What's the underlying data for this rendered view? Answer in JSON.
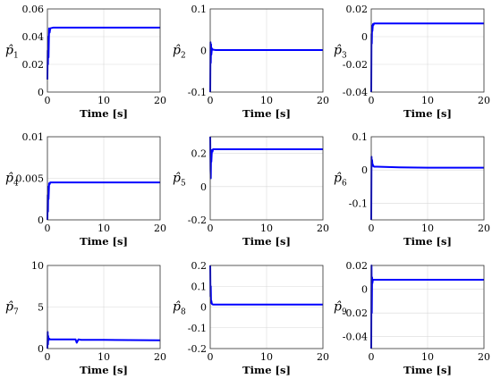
{
  "chart_data": [
    {
      "type": "line",
      "ylabel": "p̂",
      "ylabel_sub": "1",
      "xlabel": "Time [s]",
      "xlim": [
        0,
        20
      ],
      "xticks": [
        0,
        10,
        20
      ],
      "ylim": [
        0,
        0.06
      ],
      "yticks": [
        "0",
        "0.02",
        "0.04",
        "0.06"
      ],
      "grid": true,
      "series": [
        {
          "x": [
            0,
            0.05,
            0.1,
            0.15,
            0.2,
            0.3,
            0.4,
            0.5,
            1,
            5,
            10,
            20
          ],
          "y": [
            0.009,
            0.03,
            0.02,
            0.04,
            0.025,
            0.046,
            0.043,
            0.046,
            0.0465,
            0.0465,
            0.0465,
            0.0465
          ]
        }
      ]
    },
    {
      "type": "line",
      "ylabel": "p̂",
      "ylabel_sub": "2",
      "xlabel": "Time [s]",
      "xlim": [
        0,
        20
      ],
      "xticks": [
        0,
        10,
        20
      ],
      "ylim": [
        -0.1,
        0.1
      ],
      "yticks": [
        "-0.1",
        "0",
        "0.1"
      ],
      "grid": true,
      "series": [
        {
          "x": [
            0,
            0.05,
            0.1,
            0.15,
            0.2,
            0.3,
            0.4,
            0.5,
            1,
            5,
            10,
            20
          ],
          "y": [
            -0.1,
            0.02,
            -0.03,
            0.015,
            -0.01,
            0.005,
            0.003,
            0.002,
            0.001,
            0.001,
            0.001,
            0.001
          ]
        }
      ]
    },
    {
      "type": "line",
      "ylabel": "p̂",
      "ylabel_sub": "3",
      "xlabel": "Time [s]",
      "xlim": [
        0,
        20
      ],
      "xticks": [
        0,
        10,
        20
      ],
      "ylim": [
        -0.04,
        0.02
      ],
      "yticks": [
        "-0.04",
        "-0.02",
        "0",
        "0.02"
      ],
      "grid": true,
      "series": [
        {
          "x": [
            0,
            0.05,
            0.1,
            0.15,
            0.2,
            0.3,
            0.4,
            0.5,
            1,
            5,
            10,
            20
          ],
          "y": [
            -0.04,
            0.002,
            -0.005,
            0.008,
            0.004,
            0.009,
            0.0085,
            0.0095,
            0.0095,
            0.0095,
            0.0095,
            0.0095
          ]
        }
      ]
    },
    {
      "type": "line",
      "ylabel": "p̂",
      "ylabel_sub": "4",
      "xlabel": "Time [s]",
      "xlim": [
        0,
        20
      ],
      "xticks": [
        0,
        10,
        20
      ],
      "ylim": [
        0,
        0.01
      ],
      "yticks": [
        "0",
        "0.005",
        "0.01"
      ],
      "grid": true,
      "series": [
        {
          "x": [
            0,
            0.05,
            0.1,
            0.15,
            0.2,
            0.3,
            0.4,
            0.5,
            1,
            5,
            10,
            20
          ],
          "y": [
            0,
            0.003,
            0.001,
            0.004,
            0.0025,
            0.0044,
            0.0043,
            0.0045,
            0.0045,
            0.0045,
            0.0045,
            0.0045
          ]
        }
      ]
    },
    {
      "type": "line",
      "ylabel": "p̂",
      "ylabel_sub": "5",
      "xlabel": "Time [s]",
      "xlim": [
        0,
        20
      ],
      "xticks": [
        0,
        10,
        20
      ],
      "ylim": [
        -0.2,
        0.3
      ],
      "yticks": [
        "-0.2",
        "0",
        "0.2"
      ],
      "grid": true,
      "series": [
        {
          "x": [
            0,
            0.05,
            0.1,
            0.15,
            0.2,
            0.3,
            0.4,
            0.5,
            1,
            5,
            10,
            20
          ],
          "y": [
            0.3,
            0.1,
            0.05,
            0.2,
            0.15,
            0.22,
            0.21,
            0.225,
            0.225,
            0.225,
            0.225,
            0.225
          ]
        }
      ]
    },
    {
      "type": "line",
      "ylabel": "p̂",
      "ylabel_sub": "6",
      "xlabel": "Time [s]",
      "xlim": [
        0,
        20
      ],
      "xticks": [
        0,
        10,
        20
      ],
      "ylim": [
        -0.15,
        0.1
      ],
      "yticks": [
        "-0.1",
        "0",
        "0.1"
      ],
      "grid": true,
      "series": [
        {
          "x": [
            0,
            0.05,
            0.1,
            0.15,
            0.2,
            0.3,
            0.4,
            0.5,
            1,
            5,
            10,
            20
          ],
          "y": [
            -0.15,
            0.04,
            0.01,
            0.03,
            0.02,
            0.015,
            0.012,
            0.01,
            0.01,
            0.008,
            0.007,
            0.007
          ]
        }
      ]
    },
    {
      "type": "line",
      "ylabel": "p̂",
      "ylabel_sub": "7",
      "xlabel": "Time [s]",
      "xlim": [
        0,
        20
      ],
      "xticks": [
        0,
        10,
        20
      ],
      "ylim": [
        0,
        10
      ],
      "yticks": [
        "0",
        "5",
        "10"
      ],
      "grid": true,
      "series": [
        {
          "x": [
            0,
            0.05,
            0.1,
            0.15,
            0.2,
            0.3,
            0.5,
            1,
            5,
            5.2,
            5.5,
            6,
            10,
            20
          ],
          "y": [
            0,
            2,
            0.5,
            1.5,
            1,
            1.2,
            1.1,
            1.1,
            1.1,
            0.7,
            1.1,
            1.05,
            1.05,
            1.0
          ]
        }
      ]
    },
    {
      "type": "line",
      "ylabel": "p̂",
      "ylabel_sub": "8",
      "xlabel": "Time [s]",
      "xlim": [
        0,
        20
      ],
      "xticks": [
        0,
        10,
        20
      ],
      "ylim": [
        -0.2,
        0.2
      ],
      "yticks": [
        "-0.2",
        "-0.1",
        "0",
        "0.1",
        "0.2"
      ],
      "grid": true,
      "series": [
        {
          "x": [
            0,
            0.05,
            0.1,
            0.15,
            0.2,
            0.3,
            0.5,
            1,
            5,
            10,
            20
          ],
          "y": [
            0.2,
            0.05,
            0.1,
            0.02,
            0.03,
            0.015,
            0.012,
            0.012,
            0.012,
            0.012,
            0.012
          ]
        }
      ]
    },
    {
      "type": "line",
      "ylabel": "p̂",
      "ylabel_sub": "9",
      "xlabel": "Time [s]",
      "xlim": [
        0,
        20
      ],
      "xticks": [
        0,
        10,
        20
      ],
      "ylim": [
        -0.05,
        0.02
      ],
      "yticks": [
        "-0.04",
        "-0.02",
        "0",
        "0.02"
      ],
      "grid": true,
      "series": [
        {
          "x": [
            0,
            0.05,
            0.1,
            0.15,
            0.2,
            0.3,
            0.5,
            1,
            5,
            10,
            20
          ],
          "y": [
            -0.05,
            0.02,
            -0.02,
            0.01,
            0.005,
            0.008,
            0.008,
            0.008,
            0.008,
            0.008,
            0.008
          ]
        }
      ]
    }
  ],
  "colors": {
    "series": "#0000ff",
    "grid": "#d9d9d9",
    "axis": "#333333"
  }
}
